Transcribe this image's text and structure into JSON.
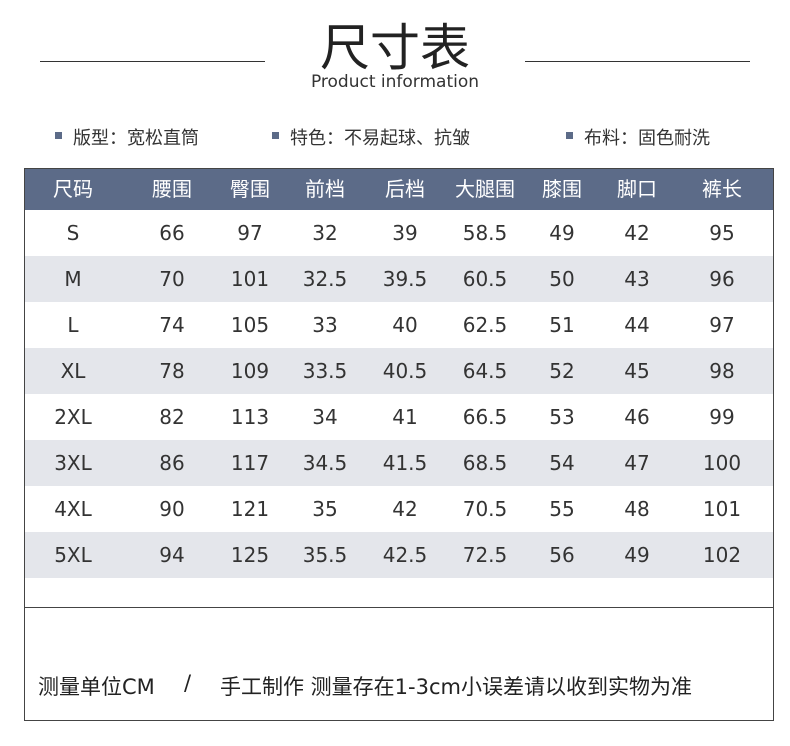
{
  "header": {
    "title": "尺寸表",
    "subtitle": "Product information"
  },
  "features": [
    "版型：宽松直筒",
    "特色：不易起球、抗皱",
    "布料：固色耐洗"
  ],
  "table": {
    "headers": [
      "尺码",
      "腰围",
      "臀围",
      "前档",
      "后档",
      "大腿围",
      "膝围",
      "脚口",
      "裤长"
    ],
    "rows": [
      [
        "S",
        66,
        97,
        32,
        39,
        58.5,
        49,
        42,
        95
      ],
      [
        "M",
        70,
        101,
        32.5,
        39.5,
        60.5,
        50,
        43,
        96
      ],
      [
        "L",
        74,
        105,
        33,
        40,
        62.5,
        51,
        44,
        97
      ],
      [
        "XL",
        78,
        109,
        33.5,
        40.5,
        64.5,
        52,
        45,
        98
      ],
      [
        "2XL",
        82,
        113,
        34,
        41,
        66.5,
        53,
        46,
        99
      ],
      [
        "3XL",
        86,
        117,
        34.5,
        41.5,
        68.5,
        54,
        47,
        100
      ],
      [
        "4XL",
        90,
        121,
        35,
        42,
        70.5,
        55,
        48,
        101
      ],
      [
        "5XL",
        94,
        125,
        35.5,
        42.5,
        72.5,
        56,
        49,
        102
      ]
    ]
  },
  "footer": [
    "测量单位CM",
    "/",
    "手工制作 测量存在1-3cm小误差请以收到实物为准"
  ]
}
